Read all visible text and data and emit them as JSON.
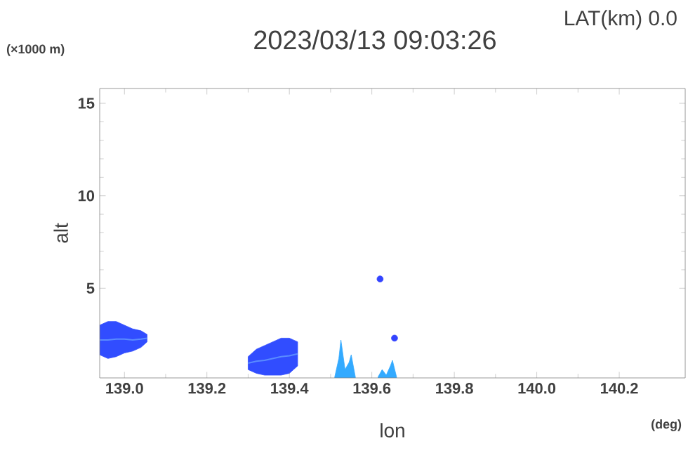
{
  "chart_data": {
    "type": "area",
    "title": "2023/03/13 09:03:26",
    "subtitle": "LAT(km) 0.0",
    "xlabel": "lon",
    "ylabel": "alt",
    "annotations": [
      "(×1000 m)",
      "(deg)"
    ],
    "xlim": [
      138.94,
      140.36
    ],
    "ylim": [
      0.15,
      15.8
    ],
    "xticks": [
      {
        "value": 139.0,
        "label": "139.0"
      },
      {
        "value": 139.2,
        "label": "139.2"
      },
      {
        "value": 139.4,
        "label": "139.4"
      },
      {
        "value": 139.6,
        "label": "139.6"
      },
      {
        "value": 139.8,
        "label": "139.8"
      },
      {
        "value": 140.0,
        "label": "140.0"
      },
      {
        "value": 140.2,
        "label": "140.2"
      }
    ],
    "yticks": [
      5,
      10,
      15
    ],
    "grid": false,
    "series": [
      {
        "type": "line",
        "color": "#5a8cff",
        "x": [
          138.94,
          138.96,
          138.98,
          139.0,
          139.02,
          139.04,
          139.055
        ],
        "lower": [
          1.4,
          1.2,
          1.3,
          1.5,
          1.6,
          1.8,
          2.1
        ],
        "upper": [
          3.0,
          3.2,
          3.2,
          3.0,
          2.8,
          2.7,
          2.5
        ],
        "values": [
          2.2,
          2.2,
          2.25,
          2.25,
          2.2,
          2.25,
          2.3
        ]
      },
      {
        "type": "line",
        "color": "#5a8cff",
        "x": [
          139.3,
          139.32,
          139.34,
          139.36,
          139.38,
          139.4,
          139.42
        ],
        "lower": [
          0.6,
          0.4,
          0.3,
          0.3,
          0.3,
          0.4,
          0.8
        ],
        "upper": [
          1.3,
          1.7,
          1.9,
          2.1,
          2.3,
          2.3,
          2.1
        ],
        "values": [
          0.95,
          1.05,
          1.1,
          1.2,
          1.3,
          1.35,
          1.45
        ]
      },
      {
        "color": "#33aaff",
        "x": [
          139.51,
          139.52,
          139.525,
          139.535,
          139.545,
          139.55,
          139.56
        ],
        "values": [
          0.2,
          1.2,
          2.2,
          0.6,
          1.0,
          1.4,
          0.2
        ]
      },
      {
        "color": "#33aaff",
        "x": [
          139.615,
          139.625,
          139.635,
          139.645,
          139.65,
          139.66
        ],
        "values": [
          0.2,
          0.6,
          0.3,
          0.8,
          1.1,
          0.2
        ]
      },
      {
        "type": "scatter",
        "marker": "circle",
        "color": "#3344ff",
        "x": [
          139.62,
          139.655
        ],
        "values": [
          5.5,
          2.3
        ]
      }
    ]
  }
}
